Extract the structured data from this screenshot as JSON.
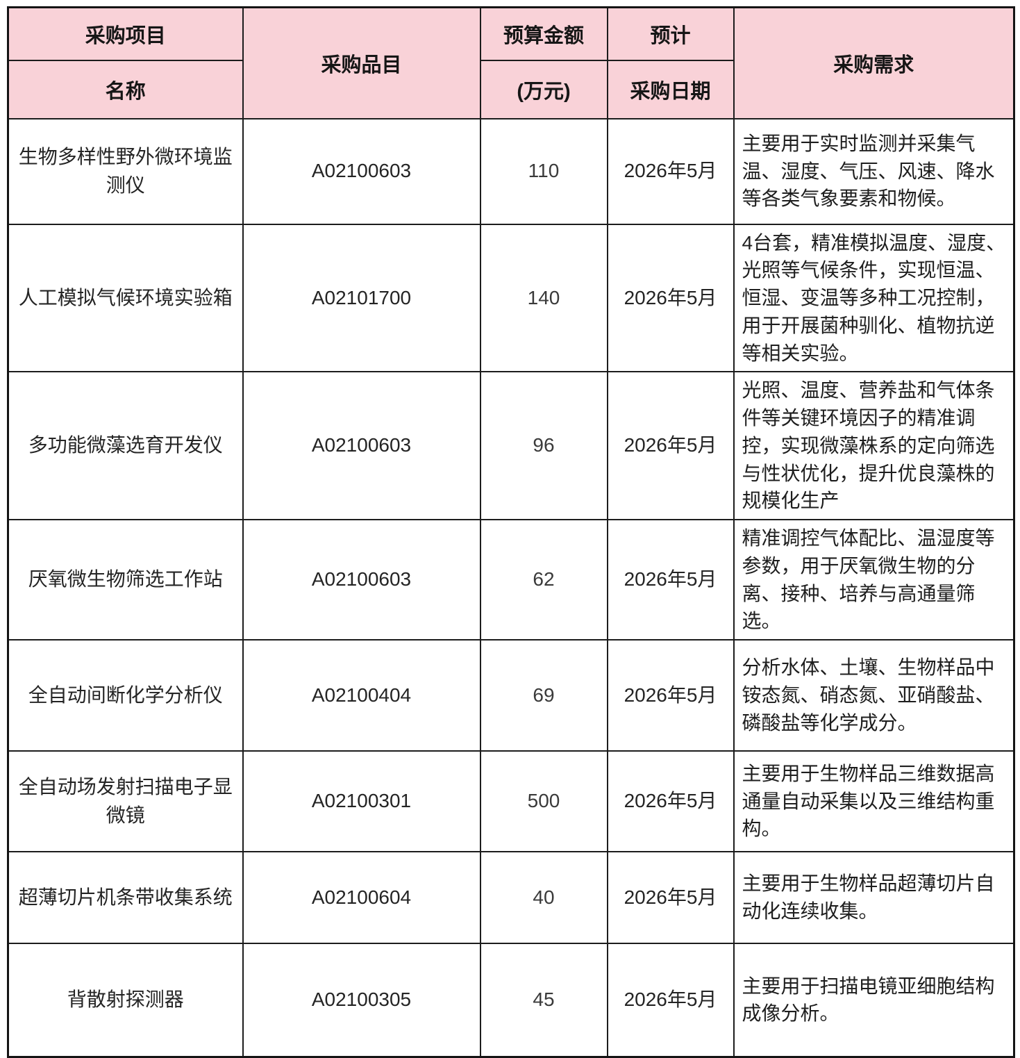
{
  "colors": {
    "header_bg": "#f9d2d8",
    "border": "#1c1c1c",
    "text": "#1e1e1e"
  },
  "table": {
    "header": {
      "project_line1": "采购项目",
      "project_line2": "名称",
      "item": "采购品目",
      "budget_line1": "预算金额",
      "budget_line2": "(万元)",
      "date_line1": "预计",
      "date_line2": "采购日期",
      "requirement": "采购需求"
    },
    "rows": [
      {
        "name": "生物多样性野外微环境监测仪",
        "code": "A02100603",
        "budget": "110",
        "date": "2026年5月",
        "requirement": "主要用于实时监测并采集气温、湿度、气压、风速、降水等各类气象要素和物候。"
      },
      {
        "name": "人工模拟气候环境实验箱",
        "code": "A02101700",
        "budget": "140",
        "date": "2026年5月",
        "requirement": "4台套，精准模拟温度、湿度、光照等气候条件，实现恒温、恒湿、变温等多种工况控制，用于开展菌种驯化、植物抗逆等相关实验。"
      },
      {
        "name": "多功能微藻选育开发仪",
        "code": "A02100603",
        "budget": "96",
        "date": "2026年5月",
        "requirement": "光照、温度、营养盐和气体条件等关键环境因子的精准调控，实现微藻株系的定向筛选与性状优化，提升优良藻株的规模化生产"
      },
      {
        "name": "厌氧微生物筛选工作站",
        "code": "A02100603",
        "budget": "62",
        "date": "2026年5月",
        "requirement": "精准调控气体配比、温湿度等参数，用于厌氧微生物的分离、接种、培养与高通量筛选。"
      },
      {
        "name": "全自动间断化学分析仪",
        "code": "A02100404",
        "budget": "69",
        "date": "2026年5月",
        "requirement": "分析水体、土壤、生物样品中铵态氮、硝态氮、亚硝酸盐、磷酸盐等化学成分。"
      },
      {
        "name": "全自动场发射扫描电子显微镜",
        "code": "A02100301",
        "budget": "500",
        "date": "2026年5月",
        "requirement": "主要用于生物样品三维数据高通量自动采集以及三维结构重构。"
      },
      {
        "name": "超薄切片机条带收集系统",
        "code": "A02100604",
        "budget": "40",
        "date": "2026年5月",
        "requirement": "主要用于生物样品超薄切片自动化连续收集。"
      },
      {
        "name": "背散射探测器",
        "code": "A02100305",
        "budget": "45",
        "date": "2026年5月",
        "requirement": "主要用于扫描电镜亚细胞结构成像分析。"
      }
    ]
  }
}
